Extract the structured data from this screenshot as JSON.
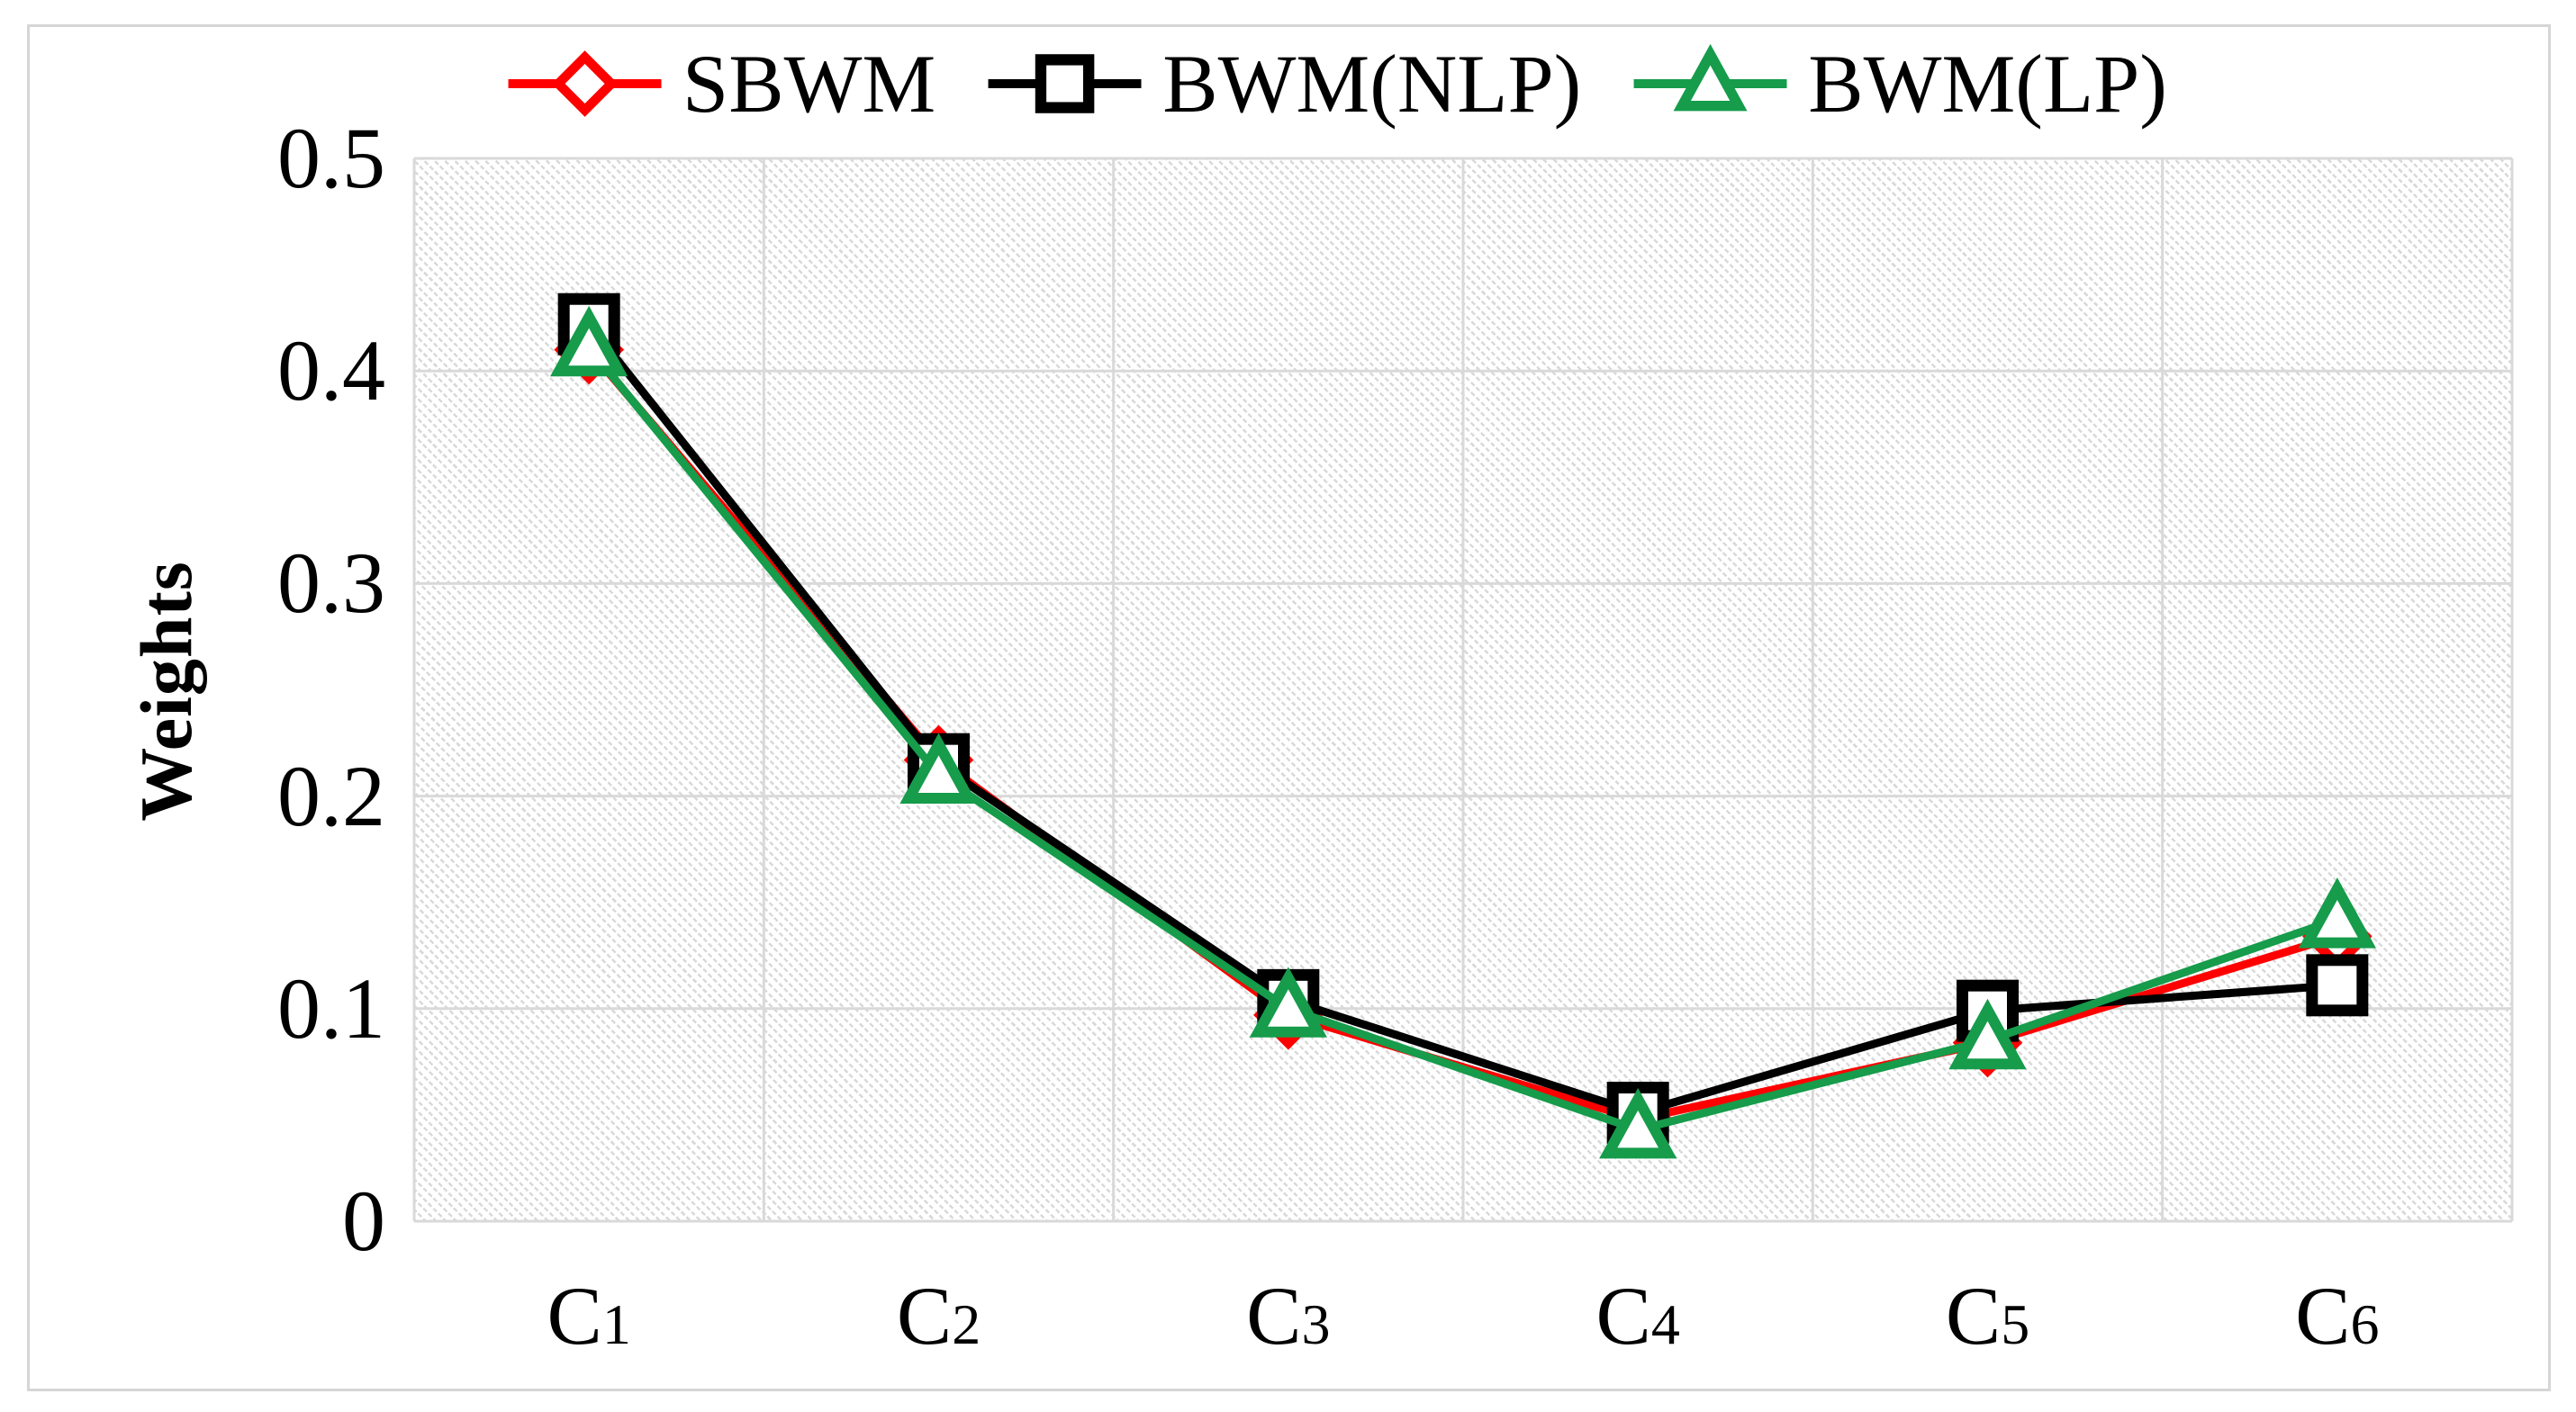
{
  "chart_data": {
    "type": "line",
    "title": "",
    "ylabel": "Weights",
    "xlabel": "",
    "categories": [
      "C1",
      "C2",
      "C3",
      "C4",
      "C5",
      "C6"
    ],
    "series": [
      {
        "name": "SBWM",
        "color": "#FF0000",
        "marker": "diamond",
        "values": [
          0.41,
          0.217,
          0.097,
          0.048,
          0.084,
          0.134
        ]
      },
      {
        "name": "BWM(NLP)",
        "color": "#000000",
        "marker": "square",
        "values": [
          0.422,
          0.215,
          0.104,
          0.051,
          0.099,
          0.111
        ]
      },
      {
        "name": "BWM(LP)",
        "color": "#169C4B",
        "marker": "triangle",
        "values": [
          0.411,
          0.21,
          0.1,
          0.043,
          0.085,
          0.142
        ]
      }
    ],
    "yticks": [
      {
        "label": "0.5",
        "value": 0.5
      },
      {
        "label": "0.4",
        "value": 0.4
      },
      {
        "label": "0.3",
        "value": 0.3
      },
      {
        "label": "0.2",
        "value": 0.2
      },
      {
        "label": "0.1",
        "value": 0.1
      },
      {
        "label": "0",
        "value": 0.0
      }
    ],
    "ylim": [
      0,
      0.5
    ],
    "grid": true,
    "grid_color": "#D9D9D9",
    "plot_background": "diagonal-dot-hatch",
    "legend_position": "top"
  },
  "figure": {
    "border_color": "#D6D6D6",
    "background": "#ffffff"
  }
}
